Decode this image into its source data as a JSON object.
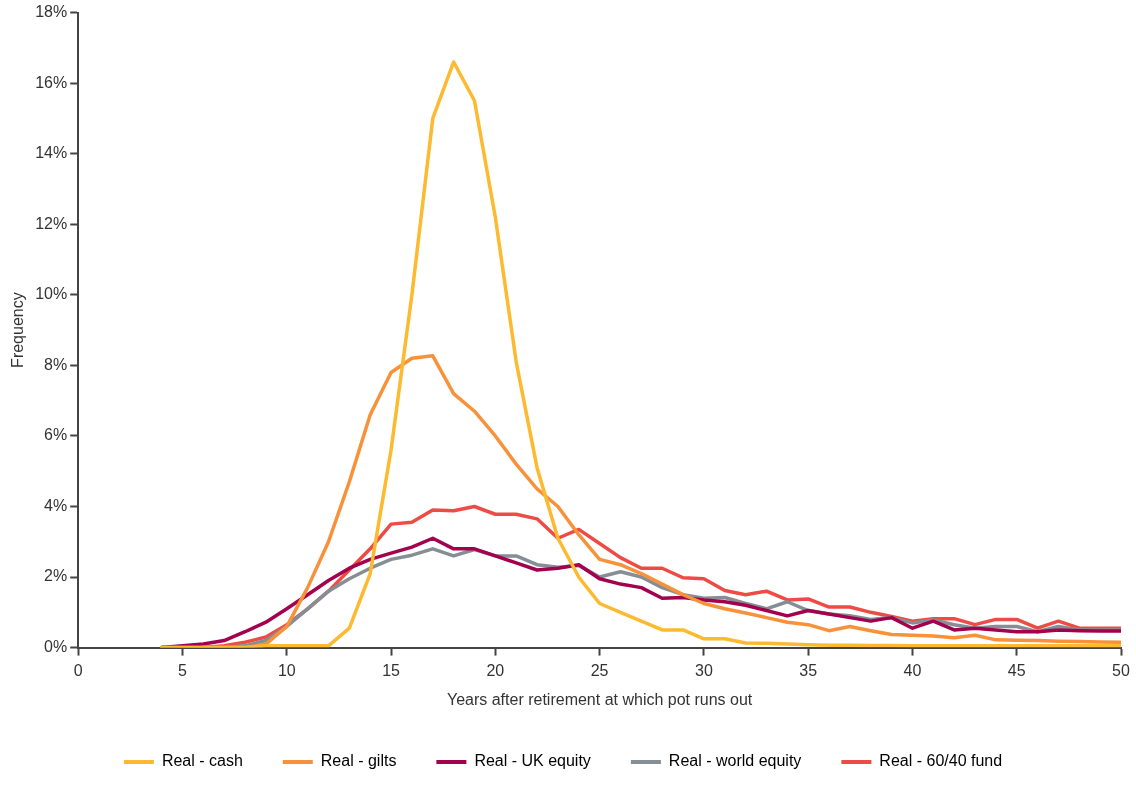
{
  "chart_data": {
    "type": "line",
    "xlabel": "Years after retirement at which pot runs out",
    "ylabel": "Frequency",
    "x": [
      4,
      5,
      6,
      7,
      8,
      9,
      10,
      11,
      12,
      13,
      14,
      15,
      16,
      17,
      18,
      19,
      20,
      21,
      22,
      23,
      24,
      25,
      26,
      27,
      28,
      29,
      30,
      31,
      32,
      33,
      34,
      35,
      36,
      37,
      38,
      39,
      40,
      41,
      42,
      43,
      44,
      45,
      46,
      47,
      48,
      49,
      50
    ],
    "series": [
      {
        "name": "Real - cash",
        "color": "#fdb92f",
        "values": [
          0,
          0,
          0,
          0,
          0,
          0.05,
          0.05,
          0.05,
          0.05,
          0.55,
          2.1,
          5.6,
          10,
          15,
          16.6,
          15.5,
          12.2,
          8.1,
          5.1,
          3.1,
          2,
          1.25,
          1,
          0.75,
          0.5,
          0.5,
          0.25,
          0.25,
          0.13,
          0.12,
          0.1,
          0.08,
          0.07,
          0.07,
          0.06,
          0.06,
          0.05,
          0.05,
          0.05,
          0.05,
          0.05,
          0.05,
          0.05,
          0.05,
          0.05,
          0.05,
          0.05
        ]
      },
      {
        "name": "Real - gilts",
        "color": "#f7923a",
        "values": [
          0,
          0,
          0,
          0,
          0,
          0.1,
          0.6,
          1.7,
          3,
          4.7,
          6.6,
          7.8,
          8.2,
          8.27,
          7.2,
          6.7,
          6,
          5.2,
          4.5,
          4,
          3.2,
          2.5,
          2.35,
          2.1,
          1.8,
          1.5,
          1.25,
          1.1,
          0.98,
          0.85,
          0.72,
          0.65,
          0.48,
          0.6,
          0.48,
          0.37,
          0.35,
          0.33,
          0.28,
          0.35,
          0.22,
          0.21,
          0.2,
          0.18,
          0.17,
          0.16,
          0.15
        ]
      },
      {
        "name": "Real - UK equity",
        "color": "#a3004e",
        "values": [
          0,
          0.05,
          0.1,
          0.2,
          0.45,
          0.72,
          1.1,
          1.5,
          1.9,
          2.25,
          2.5,
          2.68,
          2.85,
          3.1,
          2.8,
          2.8,
          2.6,
          2.4,
          2.2,
          2.25,
          2.35,
          1.95,
          1.8,
          1.7,
          1.4,
          1.42,
          1.35,
          1.3,
          1.2,
          1.05,
          0.9,
          1.05,
          0.95,
          0.85,
          0.75,
          0.85,
          0.55,
          0.75,
          0.5,
          0.55,
          0.5,
          0.45,
          0.45,
          0.5,
          0.48,
          0.47,
          0.47
        ]
      },
      {
        "name": "Real - world equity",
        "color": "#848e94",
        "values": [
          0,
          0,
          0,
          0,
          0.05,
          0.2,
          0.6,
          1.1,
          1.6,
          1.95,
          2.25,
          2.5,
          2.62,
          2.8,
          2.6,
          2.78,
          2.6,
          2.6,
          2.35,
          2.28,
          2.33,
          2,
          2.15,
          2,
          1.7,
          1.5,
          1.4,
          1.42,
          1.25,
          1.1,
          1.3,
          1.05,
          0.95,
          0.9,
          0.8,
          0.85,
          0.7,
          0.78,
          0.65,
          0.55,
          0.6,
          0.6,
          0.45,
          0.6,
          0.5,
          0.5,
          0.5
        ]
      },
      {
        "name": "Real - 60/40 fund",
        "color": "#ef4b45",
        "values": [
          0,
          0,
          0,
          0.05,
          0.15,
          0.3,
          0.65,
          1.1,
          1.6,
          2.2,
          2.8,
          3.5,
          3.55,
          3.9,
          3.88,
          4,
          3.78,
          3.78,
          3.65,
          3.1,
          3.35,
          2.95,
          2.55,
          2.25,
          2.25,
          1.98,
          1.95,
          1.62,
          1.5,
          1.6,
          1.35,
          1.38,
          1.15,
          1.15,
          1,
          0.88,
          0.75,
          0.82,
          0.82,
          0.65,
          0.8,
          0.8,
          0.55,
          0.75,
          0.55,
          0.55,
          0.55
        ]
      }
    ],
    "xlim": [
      0,
      50
    ],
    "xticks": [
      0,
      5,
      10,
      15,
      20,
      25,
      30,
      35,
      40,
      45,
      50
    ],
    "ylim": [
      0,
      18
    ],
    "yticks": [
      {
        "value": 0,
        "label": "0%"
      },
      {
        "value": 2,
        "label": "2%"
      },
      {
        "value": 4,
        "label": "4%"
      },
      {
        "value": 6,
        "label": "6%"
      },
      {
        "value": 8,
        "label": "8%"
      },
      {
        "value": 10,
        "label": "10%"
      },
      {
        "value": 12,
        "label": "12%"
      },
      {
        "value": 14,
        "label": "14%"
      },
      {
        "value": 16,
        "label": "16%"
      },
      {
        "value": 18,
        "label": "18%"
      }
    ],
    "grid": false,
    "legend": "bottom",
    "marker": "none",
    "line_style": "solid"
  }
}
